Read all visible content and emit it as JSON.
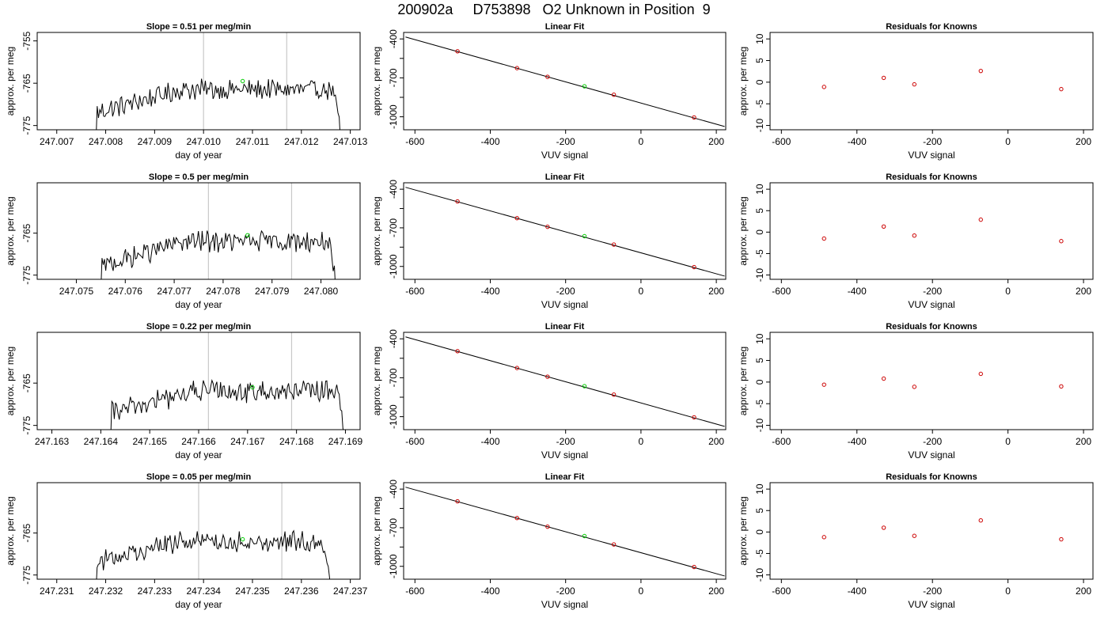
{
  "page_title": "200902a     D753898   O2 Unknown in Position  9",
  "colors": {
    "trace": "#000000",
    "marker_line": "#c8c8c8",
    "unknown_point": "#00cc00",
    "known_point": "#cc0000",
    "fit_line": "#000000"
  },
  "chart_data": [
    {
      "type": "line",
      "row": 0,
      "panel": "timeseries",
      "title": "Slope =  0.51  per meg/min",
      "xlabel": "day of year",
      "ylabel": "approx. per meg",
      "xlim": [
        247.0066,
        247.0132
      ],
      "ylim": [
        -776,
        -753
      ],
      "xticks": [
        247.007,
        247.008,
        247.009,
        247.01,
        247.011,
        247.012,
        247.013
      ],
      "xtick_labels": [
        "247.007",
        "247.008",
        "247.009",
        "247.010",
        "247.011",
        "247.012",
        "247.013"
      ],
      "yticks": [
        -755,
        -765,
        -775
      ],
      "ytick_labels": [
        "-755",
        "-765",
        "-775"
      ],
      "x_start": 247.0078,
      "x_end": 247.0128,
      "level_start": -772,
      "level_plateau": -766.5,
      "noise": 1.5,
      "vlines": [
        247.01,
        247.0117
      ],
      "unknown_point": {
        "x": 247.0108,
        "y": -764.5
      }
    },
    {
      "type": "scatter",
      "row": 0,
      "panel": "fit",
      "title": "Linear Fit",
      "xlabel": "VUV signal",
      "ylabel": "approx. per meg",
      "xlim": [
        -630,
        225
      ],
      "ylim": [
        -1100,
        -350
      ],
      "xticks": [
        -600,
        -400,
        -200,
        0,
        200
      ],
      "xtick_labels": [
        "-600",
        "-400",
        "-200",
        "0",
        "200"
      ],
      "yticks": [
        -400,
        -700,
        -1000
      ],
      "ytick_labels": [
        "-400",
        "-700",
        "-1000"
      ],
      "yminor": [
        -550,
        -850
      ],
      "line": {
        "x": [
          -625,
          222
        ],
        "y": [
          -385,
          -1075
        ]
      },
      "knowns": {
        "x": [
          -487,
          -329,
          -248,
          -72,
          141
        ],
        "y": [
          -495,
          -625,
          -692,
          -830,
          -1005
        ]
      },
      "unknown": {
        "x": -150,
        "y": -765
      }
    },
    {
      "type": "scatter",
      "row": 0,
      "panel": "residuals",
      "title": "Residuals for Knowns",
      "xlabel": "VUV signal",
      "ylabel": "approx. per meg",
      "xlim": [
        -630,
        225
      ],
      "ylim": [
        -11,
        11.5
      ],
      "xticks": [
        -600,
        -400,
        -200,
        0,
        200
      ],
      "xtick_labels": [
        "-600",
        "-400",
        "-200",
        "0",
        "200"
      ],
      "yticks": [
        10,
        5,
        0,
        -5,
        -10
      ],
      "ytick_labels": [
        "10",
        "5",
        "0",
        "-5",
        "-10"
      ],
      "points": {
        "x": [
          -487,
          -329,
          -248,
          -72,
          141
        ],
        "y": [
          -1.1,
          1.0,
          -0.5,
          2.6,
          -1.6
        ]
      }
    },
    {
      "type": "line",
      "row": 1,
      "panel": "timeseries",
      "title": "Slope =  0.5  per meg/min",
      "xlabel": "day of year",
      "ylabel": "approx. per meg",
      "xlim": [
        247.0742,
        247.0808
      ],
      "ylim": [
        -776,
        -753
      ],
      "xticks": [
        247.075,
        247.076,
        247.077,
        247.078,
        247.079,
        247.08
      ],
      "xtick_labels": [
        "247.075",
        "247.076",
        "247.077",
        "247.078",
        "247.079",
        "247.080"
      ],
      "yticks": [
        -765,
        -775
      ],
      "ytick_labels": [
        "-765",
        "-775"
      ],
      "x_start": 247.0755,
      "x_end": 247.0803,
      "level_start": -773,
      "level_plateau": -767,
      "noise": 1.5,
      "vlines": [
        247.0777,
        247.0794
      ],
      "unknown_point": {
        "x": 247.0785,
        "y": -765.5
      }
    },
    {
      "type": "scatter",
      "row": 1,
      "panel": "fit",
      "title": "Linear Fit",
      "xlabel": "VUV signal",
      "ylabel": "approx. per meg",
      "xlim": [
        -630,
        225
      ],
      "ylim": [
        -1100,
        -350
      ],
      "xticks": [
        -600,
        -400,
        -200,
        0,
        200
      ],
      "xtick_labels": [
        "-600",
        "-400",
        "-200",
        "0",
        "200"
      ],
      "yticks": [
        -400,
        -700,
        -1000
      ],
      "ytick_labels": [
        "-400",
        "-700",
        "-1000"
      ],
      "yminor": [
        -550,
        -850
      ],
      "line": {
        "x": [
          -625,
          222
        ],
        "y": [
          -385,
          -1075
        ]
      },
      "knowns": {
        "x": [
          -487,
          -329,
          -248,
          -72,
          141
        ],
        "y": [
          -495,
          -625,
          -692,
          -830,
          -1005
        ]
      },
      "unknown": {
        "x": -150,
        "y": -765
      }
    },
    {
      "type": "scatter",
      "row": 1,
      "panel": "residuals",
      "title": "Residuals for Knowns",
      "xlabel": "VUV signal",
      "ylabel": "approx. per meg",
      "xlim": [
        -630,
        225
      ],
      "ylim": [
        -11,
        11.5
      ],
      "xticks": [
        -600,
        -400,
        -200,
        0,
        200
      ],
      "xtick_labels": [
        "-600",
        "-400",
        "-200",
        "0",
        "200"
      ],
      "yticks": [
        10,
        5,
        0,
        -5,
        -10
      ],
      "ytick_labels": [
        "10",
        "5",
        "0",
        "-5",
        "-10"
      ],
      "points": {
        "x": [
          -487,
          -329,
          -248,
          -72,
          141
        ],
        "y": [
          -1.5,
          1.3,
          -0.8,
          2.9,
          -2.1
        ]
      }
    },
    {
      "type": "line",
      "row": 2,
      "panel": "timeseries",
      "title": "Slope =  0.22  per meg/min",
      "xlabel": "day of year",
      "ylabel": "approx. per meg",
      "xlim": [
        247.1627,
        247.1693
      ],
      "ylim": [
        -776,
        -753
      ],
      "xticks": [
        247.163,
        247.164,
        247.165,
        247.166,
        247.167,
        247.168,
        247.169
      ],
      "xtick_labels": [
        "247.163",
        "247.164",
        "247.165",
        "247.166",
        "247.167",
        "247.168",
        "247.169"
      ],
      "yticks": [
        -765,
        -775
      ],
      "ytick_labels": [
        "-765",
        "-775"
      ],
      "x_start": 247.1642,
      "x_end": 247.169,
      "level_start": -772,
      "level_plateau": -767,
      "noise": 1.6,
      "vlines": [
        247.1662,
        247.1679
      ],
      "unknown_point": {
        "x": 247.1671,
        "y": -766
      }
    },
    {
      "type": "scatter",
      "row": 2,
      "panel": "fit",
      "title": "Linear Fit",
      "xlabel": "VUV signal",
      "ylabel": "approx. per meg",
      "xlim": [
        -630,
        225
      ],
      "ylim": [
        -1100,
        -350
      ],
      "xticks": [
        -600,
        -400,
        -200,
        0,
        200
      ],
      "xtick_labels": [
        "-600",
        "-400",
        "-200",
        "0",
        "200"
      ],
      "yticks": [
        -400,
        -700,
        -1000
      ],
      "ytick_labels": [
        "-400",
        "-700",
        "-1000"
      ],
      "yminor": [
        -550,
        -850
      ],
      "line": {
        "x": [
          -625,
          222
        ],
        "y": [
          -385,
          -1075
        ]
      },
      "knowns": {
        "x": [
          -487,
          -329,
          -248,
          -72,
          141
        ],
        "y": [
          -495,
          -625,
          -692,
          -830,
          -1005
        ]
      },
      "unknown": {
        "x": -150,
        "y": -765
      }
    },
    {
      "type": "scatter",
      "row": 2,
      "panel": "residuals",
      "title": "Residuals for Knowns",
      "xlabel": "VUV signal",
      "ylabel": "approx. per meg",
      "xlim": [
        -630,
        225
      ],
      "ylim": [
        -11,
        11.5
      ],
      "xticks": [
        -600,
        -400,
        -200,
        0,
        200
      ],
      "xtick_labels": [
        "-600",
        "-400",
        "-200",
        "0",
        "200"
      ],
      "yticks": [
        10,
        5,
        0,
        -5,
        -10
      ],
      "ytick_labels": [
        "10",
        "5",
        "0",
        "-5",
        "-10"
      ],
      "points": {
        "x": [
          -487,
          -329,
          -248,
          -72,
          141
        ],
        "y": [
          -0.6,
          0.8,
          -1.1,
          1.9,
          -1.0
        ]
      }
    },
    {
      "type": "line",
      "row": 3,
      "panel": "timeseries",
      "title": "Slope =  0.05  per meg/min",
      "xlabel": "day of year",
      "ylabel": "approx. per meg",
      "xlim": [
        247.2306,
        247.2372
      ],
      "ylim": [
        -776,
        -753
      ],
      "xticks": [
        247.231,
        247.232,
        247.233,
        247.234,
        247.235,
        247.236,
        247.237
      ],
      "xtick_labels": [
        "247.231",
        "247.232",
        "247.233",
        "247.234",
        "247.235",
        "247.236",
        "247.237"
      ],
      "yticks": [
        -765,
        -775
      ],
      "ytick_labels": [
        "-765",
        "-775"
      ],
      "x_start": 247.2318,
      "x_end": 247.2366,
      "level_start": -772,
      "level_plateau": -767,
      "noise": 1.5,
      "vlines": [
        247.2339,
        247.2356
      ],
      "unknown_point": {
        "x": 247.2348,
        "y": -766.5
      }
    },
    {
      "type": "scatter",
      "row": 3,
      "panel": "fit",
      "title": "Linear Fit",
      "xlabel": "VUV signal",
      "ylabel": "approx. per meg",
      "xlim": [
        -630,
        225
      ],
      "ylim": [
        -1100,
        -350
      ],
      "xticks": [
        -600,
        -400,
        -200,
        0,
        200
      ],
      "xtick_labels": [
        "-600",
        "-400",
        "-200",
        "0",
        "200"
      ],
      "yticks": [
        -400,
        -700,
        -1000
      ],
      "ytick_labels": [
        "-400",
        "-700",
        "-1000"
      ],
      "yminor": [
        -550,
        -850
      ],
      "line": {
        "x": [
          -625,
          222
        ],
        "y": [
          -385,
          -1075
        ]
      },
      "knowns": {
        "x": [
          -487,
          -329,
          -248,
          -72,
          141
        ],
        "y": [
          -495,
          -625,
          -692,
          -830,
          -1005
        ]
      },
      "unknown": {
        "x": -150,
        "y": -765
      }
    },
    {
      "type": "scatter",
      "row": 3,
      "panel": "residuals",
      "title": "Residuals for Knowns",
      "xlabel": "VUV signal",
      "ylabel": "approx. per meg",
      "xlim": [
        -630,
        225
      ],
      "ylim": [
        -11,
        11.5
      ],
      "xticks": [
        -600,
        -400,
        -200,
        0,
        200
      ],
      "xtick_labels": [
        "-600",
        "-400",
        "-200",
        "0",
        "200"
      ],
      "yticks": [
        10,
        5,
        0,
        -5,
        -10
      ],
      "ytick_labels": [
        "10",
        "5",
        "0",
        "-5",
        "-10"
      ],
      "points": {
        "x": [
          -487,
          -329,
          -248,
          -72,
          141
        ],
        "y": [
          -1.2,
          1.0,
          -0.9,
          2.7,
          -1.7
        ]
      }
    }
  ]
}
